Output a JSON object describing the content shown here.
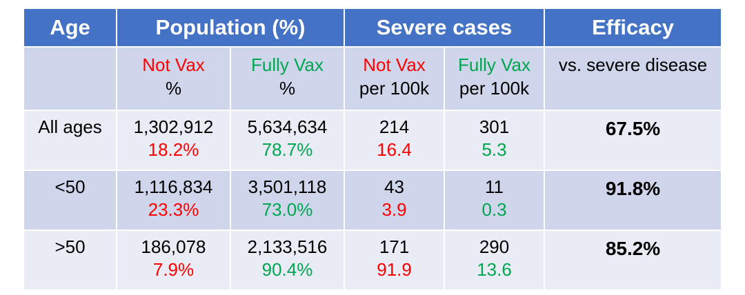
{
  "colors": {
    "header_bg": "#4472c4",
    "row_dark": "#cfd5ea",
    "row_light": "#e9ebf5",
    "not_vax": "#ff0000",
    "fully_vax": "#00a650"
  },
  "header": {
    "age": "Age",
    "population": "Population (%)",
    "severe": "Severe cases",
    "efficacy": "Efficacy"
  },
  "subheader": {
    "pop_not_vax": "Not Vax",
    "pop_not_vax_unit": "%",
    "pop_fully_vax": "Fully Vax",
    "pop_fully_vax_unit": "%",
    "sev_not_vax": "Not Vax",
    "sev_not_vax_unit": "per 100k",
    "sev_fully_vax": "Fully Vax",
    "sev_fully_vax_unit": "per 100k",
    "efficacy_desc": "vs. severe disease"
  },
  "rows": [
    {
      "age": "All ages",
      "pop_not_vax": "1,302,912",
      "pop_not_vax_pct": "18.2%",
      "pop_fully_vax": "5,634,634",
      "pop_fully_vax_pct": "78.7%",
      "sev_not_vax": "214",
      "sev_not_vax_rate": "16.4",
      "sev_fully_vax": "301",
      "sev_fully_vax_rate": "5.3",
      "efficacy": "67.5%"
    },
    {
      "age": "<50",
      "pop_not_vax": "1,116,834",
      "pop_not_vax_pct": "23.3%",
      "pop_fully_vax": "3,501,118",
      "pop_fully_vax_pct": "73.0%",
      "sev_not_vax": "43",
      "sev_not_vax_rate": "3.9",
      "sev_fully_vax": "11",
      "sev_fully_vax_rate": "0.3",
      "efficacy": "91.8%"
    },
    {
      "age": ">50",
      "pop_not_vax": "186,078",
      "pop_not_vax_pct": "7.9%",
      "pop_fully_vax": "2,133,516",
      "pop_fully_vax_pct": "90.4%",
      "sev_not_vax": "171",
      "sev_not_vax_rate": "91.9",
      "sev_fully_vax": "290",
      "sev_fully_vax_rate": "13.6",
      "efficacy": "85.2%"
    }
  ]
}
